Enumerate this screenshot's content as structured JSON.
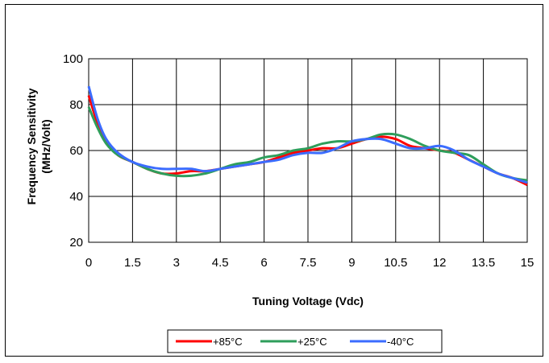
{
  "chart_data": {
    "type": "line",
    "title": "",
    "xlabel": "Tuning Voltage (Vdc)",
    "ylabel": "Frequency Sensitivity",
    "ylabel2": "(MHz/Volt)",
    "xlim": [
      0,
      15
    ],
    "ylim": [
      20,
      100
    ],
    "xticks": [
      "0",
      "1.5",
      "3",
      "4.5",
      "6",
      "7.5",
      "9",
      "10.5",
      "12",
      "13.5",
      "15"
    ],
    "yticks": [
      "20",
      "40",
      "60",
      "80",
      "100"
    ],
    "grid": true,
    "legend_position": "bottom",
    "series": [
      {
        "name": "+85°C",
        "color": "#ff0000",
        "x": [
          0,
          0.3,
          0.6,
          1,
          1.5,
          2,
          2.5,
          3,
          3.5,
          4,
          4.5,
          5,
          5.5,
          6,
          6.5,
          7,
          7.5,
          8,
          8.5,
          9,
          9.5,
          10,
          10.5,
          11,
          11.5,
          12,
          12.5,
          13,
          13.5,
          14,
          14.5,
          15
        ],
        "values": [
          84,
          72,
          64,
          58,
          55,
          52,
          50,
          50,
          51,
          51,
          52,
          53,
          54,
          55,
          57,
          59,
          60,
          61,
          61,
          63,
          65,
          66,
          65,
          62,
          61,
          60,
          59,
          56,
          53,
          50,
          48,
          45
        ]
      },
      {
        "name": "+25°C",
        "color": "#2e9e5b",
        "x": [
          0,
          0.3,
          0.6,
          1,
          1.5,
          2,
          2.5,
          3,
          3.5,
          4,
          4.5,
          5,
          5.5,
          6,
          6.5,
          7,
          7.5,
          8,
          8.5,
          9,
          9.5,
          10,
          10.5,
          11,
          11.5,
          12,
          12.5,
          13,
          13.5,
          14,
          14.5,
          15
        ],
        "values": [
          79,
          70,
          63,
          58,
          55,
          52,
          50,
          49,
          49,
          50,
          52,
          54,
          55,
          57,
          58,
          60,
          61,
          63,
          64,
          64,
          65,
          67,
          67,
          65,
          62,
          60,
          59,
          58,
          54,
          50,
          48,
          47
        ]
      },
      {
        "name": "-40°C",
        "color": "#3b6cff",
        "x": [
          0,
          0.3,
          0.6,
          1,
          1.5,
          2,
          2.5,
          3,
          3.5,
          4,
          4.5,
          5,
          5.5,
          6,
          6.5,
          7,
          7.5,
          8,
          8.5,
          9,
          9.5,
          10,
          10.5,
          11,
          11.5,
          12,
          12.5,
          13,
          13.5,
          14,
          14.5,
          15
        ],
        "values": [
          88,
          74,
          65,
          59,
          55,
          53,
          52,
          52,
          52,
          51,
          52,
          53,
          54,
          55,
          56,
          58,
          59,
          59,
          61,
          64,
          65,
          65,
          63,
          61,
          61,
          62,
          60,
          56,
          53,
          50,
          48,
          46
        ]
      }
    ]
  }
}
